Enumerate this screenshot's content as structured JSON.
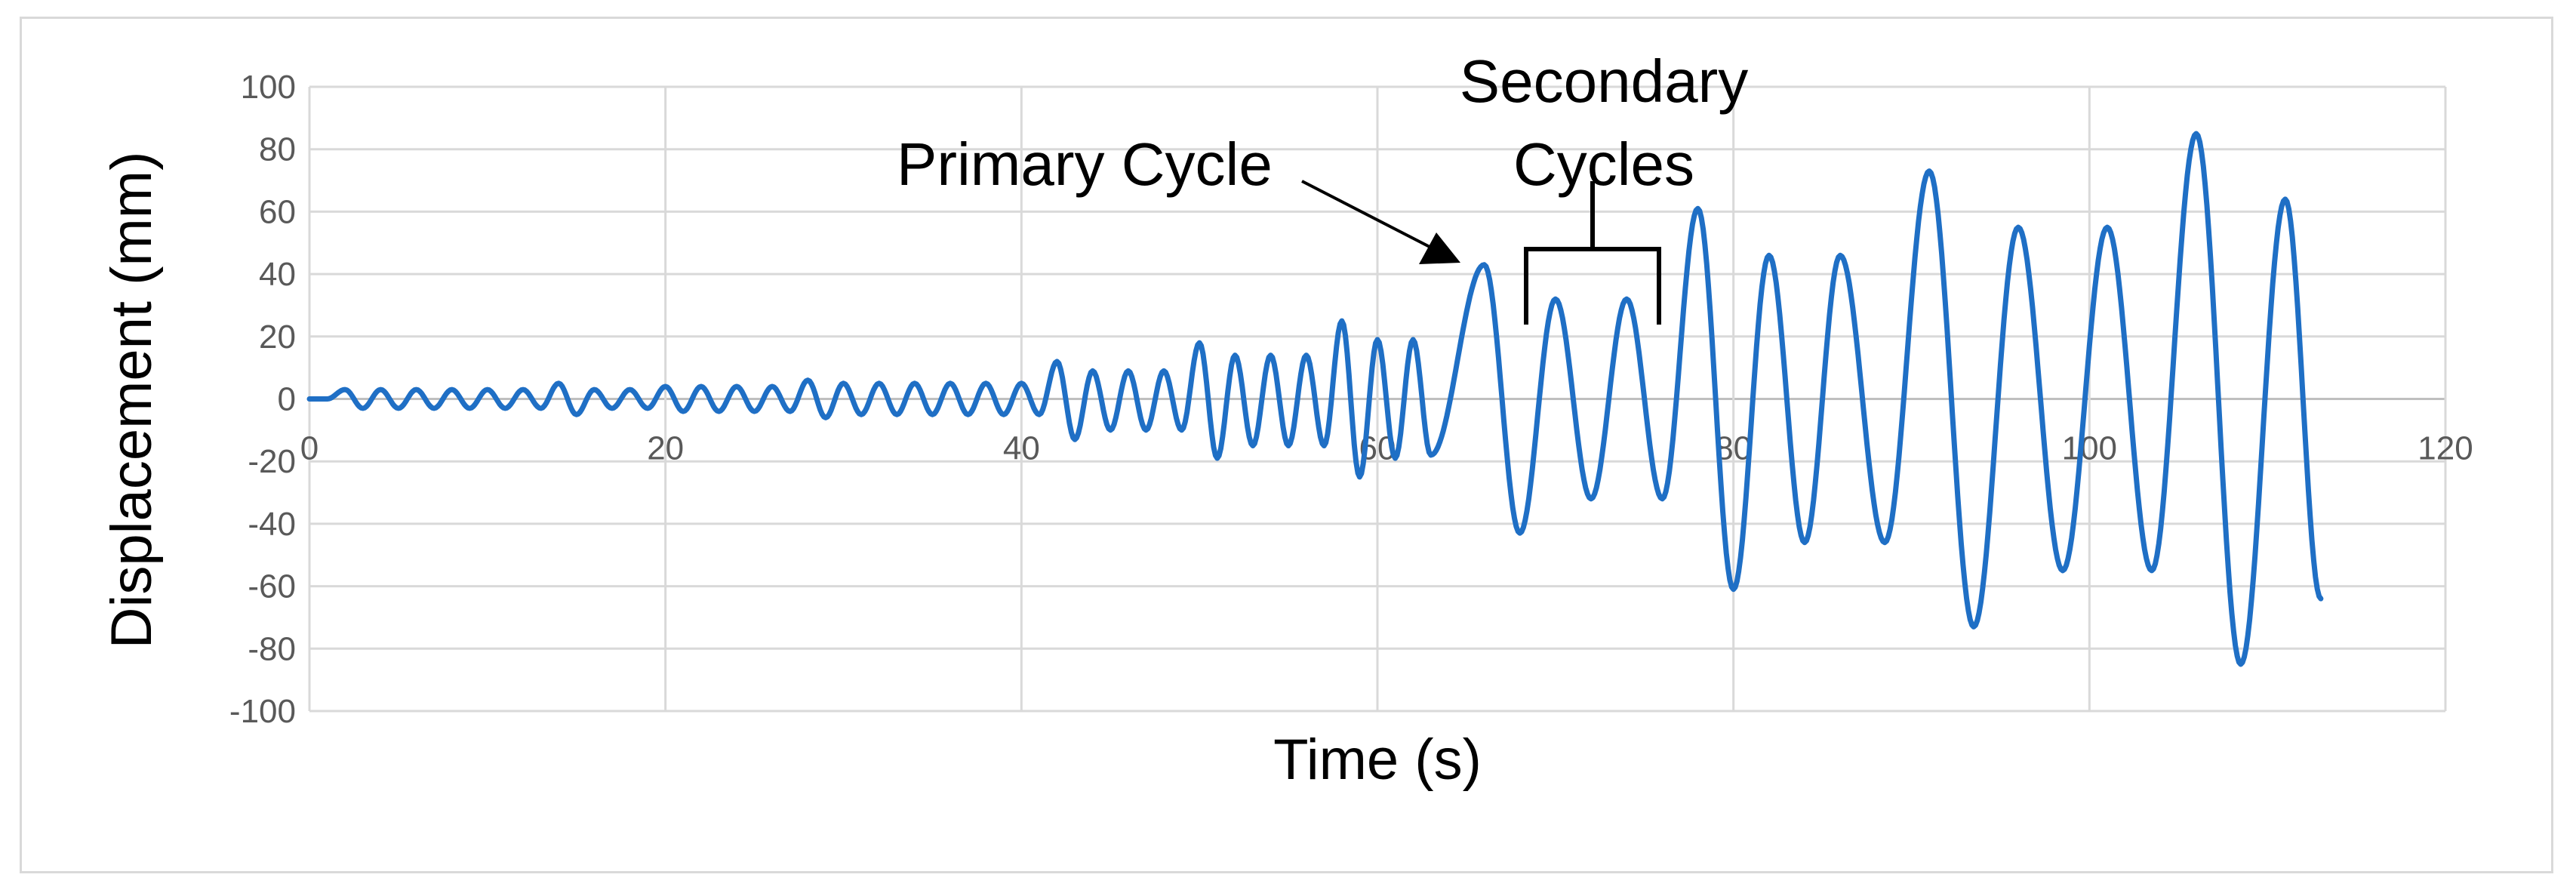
{
  "chart_data": {
    "type": "line",
    "title": "",
    "xlabel": "Time (s)",
    "ylabel": "Displacement (mm)",
    "xlim": [
      0,
      120
    ],
    "ylim": [
      -100,
      100
    ],
    "x_ticks": [
      "0",
      "20",
      "40",
      "60",
      "80",
      "100",
      "120"
    ],
    "y_ticks": [
      "100",
      "80",
      "60",
      "40",
      "20",
      "0",
      "-20",
      "-40",
      "-60",
      "-80",
      "-100"
    ],
    "grid": true,
    "legend": "none",
    "annotations": {
      "primary": "Primary Cycle",
      "secondary_line1": "Secondary",
      "secondary_line2": "Cycles"
    },
    "series": [
      {
        "color": "#1f6fc5",
        "x": [
          0,
          1,
          2,
          3,
          4,
          5,
          6,
          7,
          8,
          9,
          10,
          11,
          12,
          13,
          14,
          15,
          16,
          17,
          18,
          19,
          20,
          21,
          22,
          23,
          24,
          25,
          26,
          27,
          28,
          29,
          30,
          31,
          32,
          33,
          34,
          35,
          36,
          37,
          38,
          39,
          40,
          41,
          42,
          43,
          44,
          45,
          46,
          47,
          48,
          49,
          50,
          51,
          52,
          53,
          54,
          55,
          56,
          57,
          58,
          59,
          60,
          61,
          62,
          63,
          66,
          68,
          70,
          72,
          74,
          76,
          78,
          80,
          82,
          84,
          86,
          88.5,
          91,
          93.5,
          96,
          98.5,
          101,
          103.5,
          106,
          108.5,
          111,
          113
        ],
        "y": [
          0,
          0,
          3,
          -3,
          3,
          -3,
          3,
          -3,
          3,
          -3,
          3,
          -3,
          3,
          -3,
          5,
          -5,
          3,
          -3,
          3,
          -3,
          4,
          -4,
          4,
          -4,
          4,
          -4,
          4,
          -4,
          6,
          -6,
          5,
          -5,
          5,
          -5,
          5,
          -5,
          5,
          -5,
          5,
          -5,
          5,
          -5,
          12,
          -13,
          9,
          -10,
          9,
          -10,
          9,
          -10,
          18,
          -19,
          14,
          -15,
          14,
          -15,
          14,
          -15,
          25,
          -25,
          19,
          -19,
          19,
          -18,
          43,
          -43,
          32,
          -32,
          32,
          -32,
          61,
          -61,
          46,
          -46,
          46,
          -46,
          73,
          -73,
          55,
          -55,
          55,
          -55,
          85,
          -85,
          64,
          -64
        ]
      }
    ]
  }
}
